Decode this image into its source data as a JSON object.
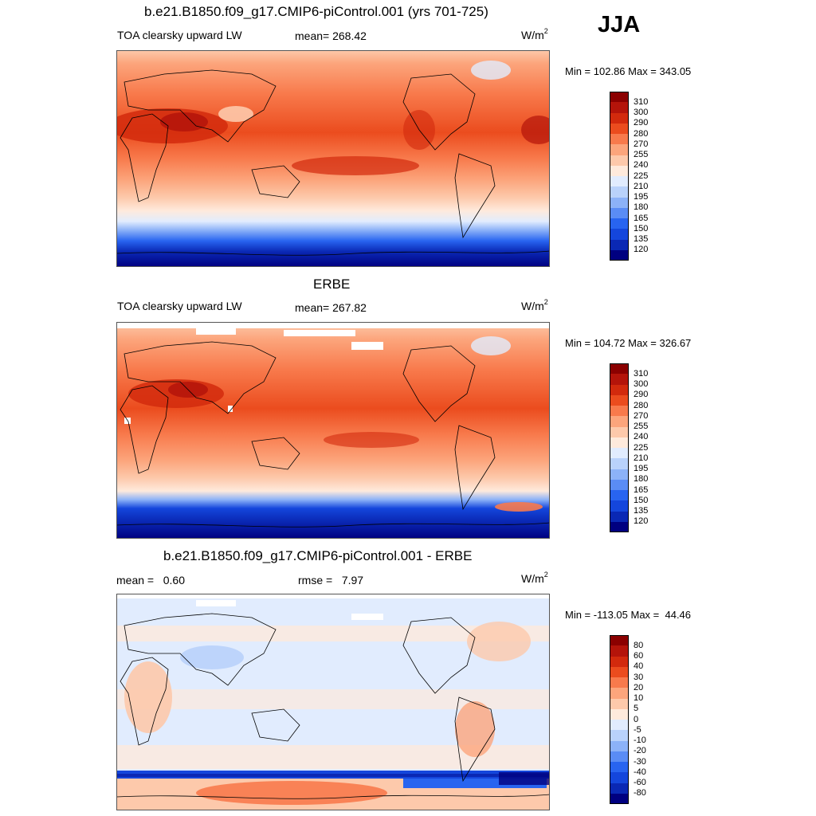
{
  "season": "JJA",
  "panels": [
    {
      "id": "model",
      "title": "b.e21.B1850.f09_g17.CMIP6-piControl.001 (yrs 701-725)",
      "left_label": "TOA clearsky upward LW",
      "center_label": "mean= 268.42",
      "unit": "W/m",
      "unit_sup": "2",
      "minmax": "Min = 102.86 Max = 343.05",
      "colorbar": {
        "colors": [
          "#000080",
          "#0a28b4",
          "#1446dc",
          "#2864f0",
          "#5a8cf5",
          "#8cb2f8",
          "#b9d2fb",
          "#e1ecfe",
          "#feeadc",
          "#fdc9ab",
          "#fca57c",
          "#f87a4c",
          "#eb4c1e",
          "#d22a0d",
          "#b4140a",
          "#8b0000"
        ],
        "ticks": [
          "120",
          "135",
          "150",
          "165",
          "180",
          "195",
          "210",
          "225",
          "240",
          "255",
          "270",
          "280",
          "290",
          "300",
          "310"
        ]
      }
    },
    {
      "id": "obs",
      "title": "ERBE",
      "left_label": "TOA clearsky upward LW",
      "center_label": "mean= 267.82",
      "unit": "W/m",
      "unit_sup": "2",
      "minmax": "Min = 104.72 Max = 326.67",
      "colorbar": {
        "colors": [
          "#000080",
          "#0a28b4",
          "#1446dc",
          "#2864f0",
          "#5a8cf5",
          "#8cb2f8",
          "#b9d2fb",
          "#e1ecfe",
          "#feeadc",
          "#fdc9ab",
          "#fca57c",
          "#f87a4c",
          "#eb4c1e",
          "#d22a0d",
          "#b4140a",
          "#8b0000"
        ],
        "ticks": [
          "120",
          "135",
          "150",
          "165",
          "180",
          "195",
          "210",
          "225",
          "240",
          "255",
          "270",
          "280",
          "290",
          "300",
          "310"
        ]
      }
    },
    {
      "id": "diff",
      "title": "b.e21.B1850.f09_g17.CMIP6-piControl.001 - ERBE",
      "left_label": "mean =   0.60",
      "center_label": "rmse =   7.97",
      "unit": "W/m",
      "unit_sup": "2",
      "minmax": "Min = -113.05 Max =  44.46",
      "colorbar": {
        "colors": [
          "#000080",
          "#0a28b4",
          "#1446dc",
          "#2864f0",
          "#5a8cf5",
          "#8cb2f8",
          "#b9d2fb",
          "#e1ecfe",
          "#feeadc",
          "#fdc9ab",
          "#fca57c",
          "#f87a4c",
          "#eb4c1e",
          "#d22a0d",
          "#b4140a",
          "#8b0000"
        ],
        "ticks": [
          "-80",
          "-60",
          "-40",
          "-30",
          "-20",
          "-10",
          "-5",
          "0",
          "5",
          "10",
          "20",
          "30",
          "40",
          "60",
          "80"
        ]
      }
    }
  ]
}
